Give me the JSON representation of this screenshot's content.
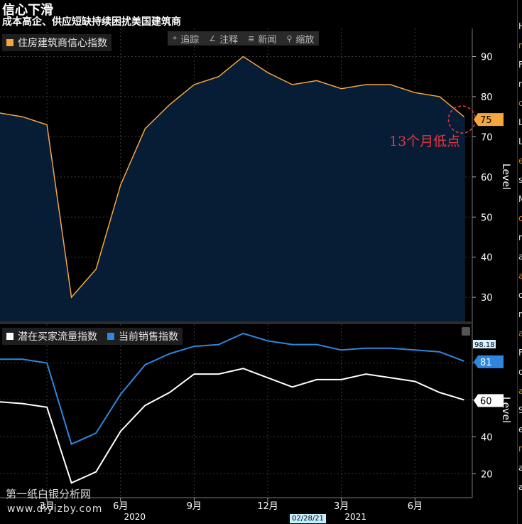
{
  "header": {
    "title": "信心下滑",
    "subtitle": "成本高企、供应短缺持续困扰美国建筑商"
  },
  "toolbar": {
    "items": [
      {
        "icon": "crosshair-icon",
        "glyph": "⌖",
        "label": "追踪"
      },
      {
        "icon": "pencil-icon",
        "glyph": "∠",
        "label": "注释"
      },
      {
        "icon": "news-icon",
        "glyph": "≣",
        "label": "新闻"
      },
      {
        "icon": "zoom-icon",
        "glyph": "⚲",
        "label": "缩放"
      }
    ]
  },
  "annotation": {
    "text": "13个月低点"
  },
  "watermark": {
    "line1": "第一纸白银分析网",
    "line2": "www.diyizby.com"
  },
  "date_badge": "02/28/21",
  "colors": {
    "orange": "#f4a640",
    "area_fill": "#071d36",
    "blue": "#2e86de",
    "white": "#ffffff",
    "red": "#e8363f",
    "grid": "#3a3a3a"
  },
  "chart_data": [
    {
      "type": "area",
      "legend": [
        "住房建筑商信心指数"
      ],
      "x": [
        "2020-01",
        "2020-02",
        "2020-03",
        "2020-04",
        "2020-05",
        "2020-06",
        "2020-07",
        "2020-08",
        "2020-09",
        "2020-10",
        "2020-11",
        "2020-12",
        "2021-01",
        "2021-02",
        "2021-03",
        "2021-04",
        "2021-05",
        "2021-06",
        "2021-07",
        "2021-08"
      ],
      "series": [
        {
          "name": "住房建筑商信心指数",
          "values": [
            76,
            75,
            73,
            30,
            37,
            58,
            72,
            78,
            83,
            85,
            90,
            86,
            83,
            84,
            82,
            83,
            83,
            81,
            80,
            75
          ]
        }
      ],
      "ylabel": "Level",
      "ylim": [
        24,
        97
      ],
      "yticks": [
        30,
        40,
        50,
        60,
        70,
        80,
        90
      ],
      "last_value_label": "75",
      "grid": true
    },
    {
      "type": "line",
      "legend": [
        "潜在买家流量指数",
        "当前销售指数"
      ],
      "x": [
        "2020-01",
        "2020-02",
        "2020-03",
        "2020-04",
        "2020-05",
        "2020-06",
        "2020-07",
        "2020-08",
        "2020-09",
        "2020-10",
        "2020-11",
        "2020-12",
        "2021-01",
        "2021-02",
        "2021-03",
        "2021-04",
        "2021-05",
        "2021-06",
        "2021-07",
        "2021-08"
      ],
      "series": [
        {
          "name": "潜在买家流量指数",
          "values": [
            59,
            58,
            56,
            15,
            21,
            43,
            57,
            64,
            74,
            74,
            77,
            72,
            67,
            71,
            71,
            74,
            72,
            70,
            64,
            60
          ]
        },
        {
          "name": "当前销售指数",
          "values": [
            82,
            82,
            80,
            36,
            42,
            63,
            79,
            85,
            89,
            90,
            96,
            92,
            90,
            90,
            87,
            88,
            88,
            87,
            86,
            81
          ]
        }
      ],
      "ylabel": "Level",
      "ylim": [
        7,
        101
      ],
      "yticks": [
        20,
        40,
        60,
        80
      ],
      "partial_tick_label": "98.18",
      "last_value_labels": [
        "60",
        "81"
      ],
      "grid": true
    }
  ],
  "x_axis": {
    "ticks": [
      {
        "month": "2020-03",
        "label": "3月"
      },
      {
        "month": "2020-06",
        "label": "6月"
      },
      {
        "month": "2020-09",
        "label": "9月"
      },
      {
        "month": "2020-12",
        "label": "12月"
      },
      {
        "month": "2021-03",
        "label": "3月"
      },
      {
        "month": "2021-06",
        "label": "6月"
      }
    ],
    "years": [
      {
        "month": "2020-06",
        "label": "2020"
      },
      {
        "month": "2021-03",
        "label": "2021"
      }
    ]
  },
  "sidebar_glyphs": [
    "H",
    "n",
    "F",
    "r",
    "c",
    "L",
    "L",
    "e",
    "s",
    "M",
    "o",
    "n",
    "a",
    "a",
    "o",
    "r",
    "a",
    "F",
    "o",
    "a",
    "S",
    "e",
    "r",
    "a",
    "a"
  ]
}
